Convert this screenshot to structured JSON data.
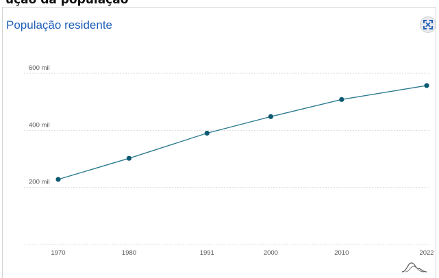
{
  "header": {
    "partial_title": "ução da população"
  },
  "card": {
    "title": "População residente"
  },
  "icons": {
    "expand": "expand-icon",
    "chart_toggle": "bell-curve-icon"
  },
  "colors": {
    "title": "#1f5fb8",
    "line": "#2c7a8f",
    "point": "#0b5a72",
    "grid": "#d9d9d9"
  },
  "chart_data": {
    "type": "line",
    "x": [
      "1970",
      "1980",
      "1991",
      "2000",
      "2010",
      "2022"
    ],
    "series": [
      {
        "values": [
          228000,
          302000,
          390000,
          448000,
          508000,
          557000
        ]
      }
    ],
    "yticks": [
      {
        "value": 200000,
        "label": "200 mil"
      },
      {
        "value": 400000,
        "label": "400 mil"
      },
      {
        "value": 600000,
        "label": "600 mil"
      }
    ],
    "ylim": [
      0,
      600000
    ],
    "grid": true
  }
}
